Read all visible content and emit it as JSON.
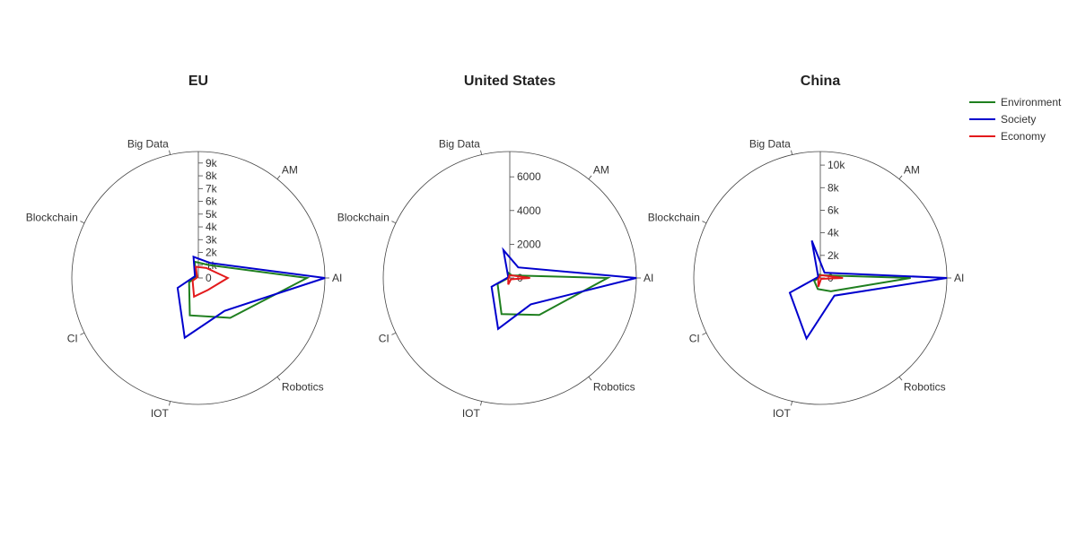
{
  "chart_data": [
    {
      "type": "radar",
      "title": "EU",
      "categories": [
        "AI",
        "AM",
        "Big Data",
        "Blockchain",
        "CI",
        "IOT",
        "Robotics"
      ],
      "radial_ticks": [
        0,
        1000,
        2000,
        3000,
        4000,
        5000,
        6000,
        7000,
        8000,
        9000
      ],
      "radial_tick_labels": [
        "0",
        "1k",
        "2k",
        "3k",
        "4k",
        "5k",
        "6k",
        "7k",
        "8k",
        "9k"
      ],
      "rmax": 9900,
      "series": [
        {
          "name": "Environment",
          "values": [
            8500,
            1300,
            1300,
            200,
            800,
            3000,
            4000
          ]
        },
        {
          "name": "Society",
          "values": [
            9900,
            1500,
            1700,
            300,
            1800,
            4800,
            3300
          ]
        },
        {
          "name": "Economy",
          "values": [
            2300,
            1000,
            900,
            100,
            500,
            1500,
            1200
          ]
        }
      ]
    },
    {
      "type": "radar",
      "title": "United States",
      "categories": [
        "AI",
        "AM",
        "Big Data",
        "Blockchain",
        "CI",
        "IOT",
        "Robotics"
      ],
      "radial_ticks": [
        0,
        2000,
        4000,
        6000
      ],
      "radial_tick_labels": [
        "0",
        "2000",
        "4000",
        "6000"
      ],
      "rmax": 7500,
      "series": [
        {
          "name": "Environment",
          "values": [
            5800,
            200,
            300,
            50,
            800,
            2200,
            2800
          ]
        },
        {
          "name": "Society",
          "values": [
            7500,
            800,
            1700,
            100,
            1200,
            3100,
            2000
          ]
        },
        {
          "name": "Economy",
          "values": [
            1200,
            200,
            150,
            50,
            100,
            400,
            100
          ]
        }
      ]
    },
    {
      "type": "radar",
      "title": "China",
      "categories": [
        "AI",
        "AM",
        "Big Data",
        "Blockchain",
        "CI",
        "IOT",
        "Robotics"
      ],
      "radial_ticks": [
        0,
        2000,
        4000,
        6000,
        8000,
        10000
      ],
      "radial_tick_labels": [
        "0",
        "2k",
        "4k",
        "6k",
        "8k",
        "10k"
      ],
      "rmax": 11200,
      "series": [
        {
          "name": "Environment",
          "values": [
            8000,
            300,
            300,
            100,
            600,
            1000,
            1500
          ]
        },
        {
          "name": "Society",
          "values": [
            11200,
            600,
            3400,
            200,
            3000,
            5500,
            2000
          ]
        },
        {
          "name": "Economy",
          "values": [
            2000,
            300,
            200,
            100,
            200,
            800,
            100
          ]
        }
      ]
    }
  ],
  "legend": [
    {
      "name": "Environment",
      "color": "#1f7f1f"
    },
    {
      "name": "Society",
      "color": "#0000cd"
    },
    {
      "name": "Economy",
      "color": "#e31a1c"
    }
  ],
  "legend_position": "top-right",
  "grid": false
}
